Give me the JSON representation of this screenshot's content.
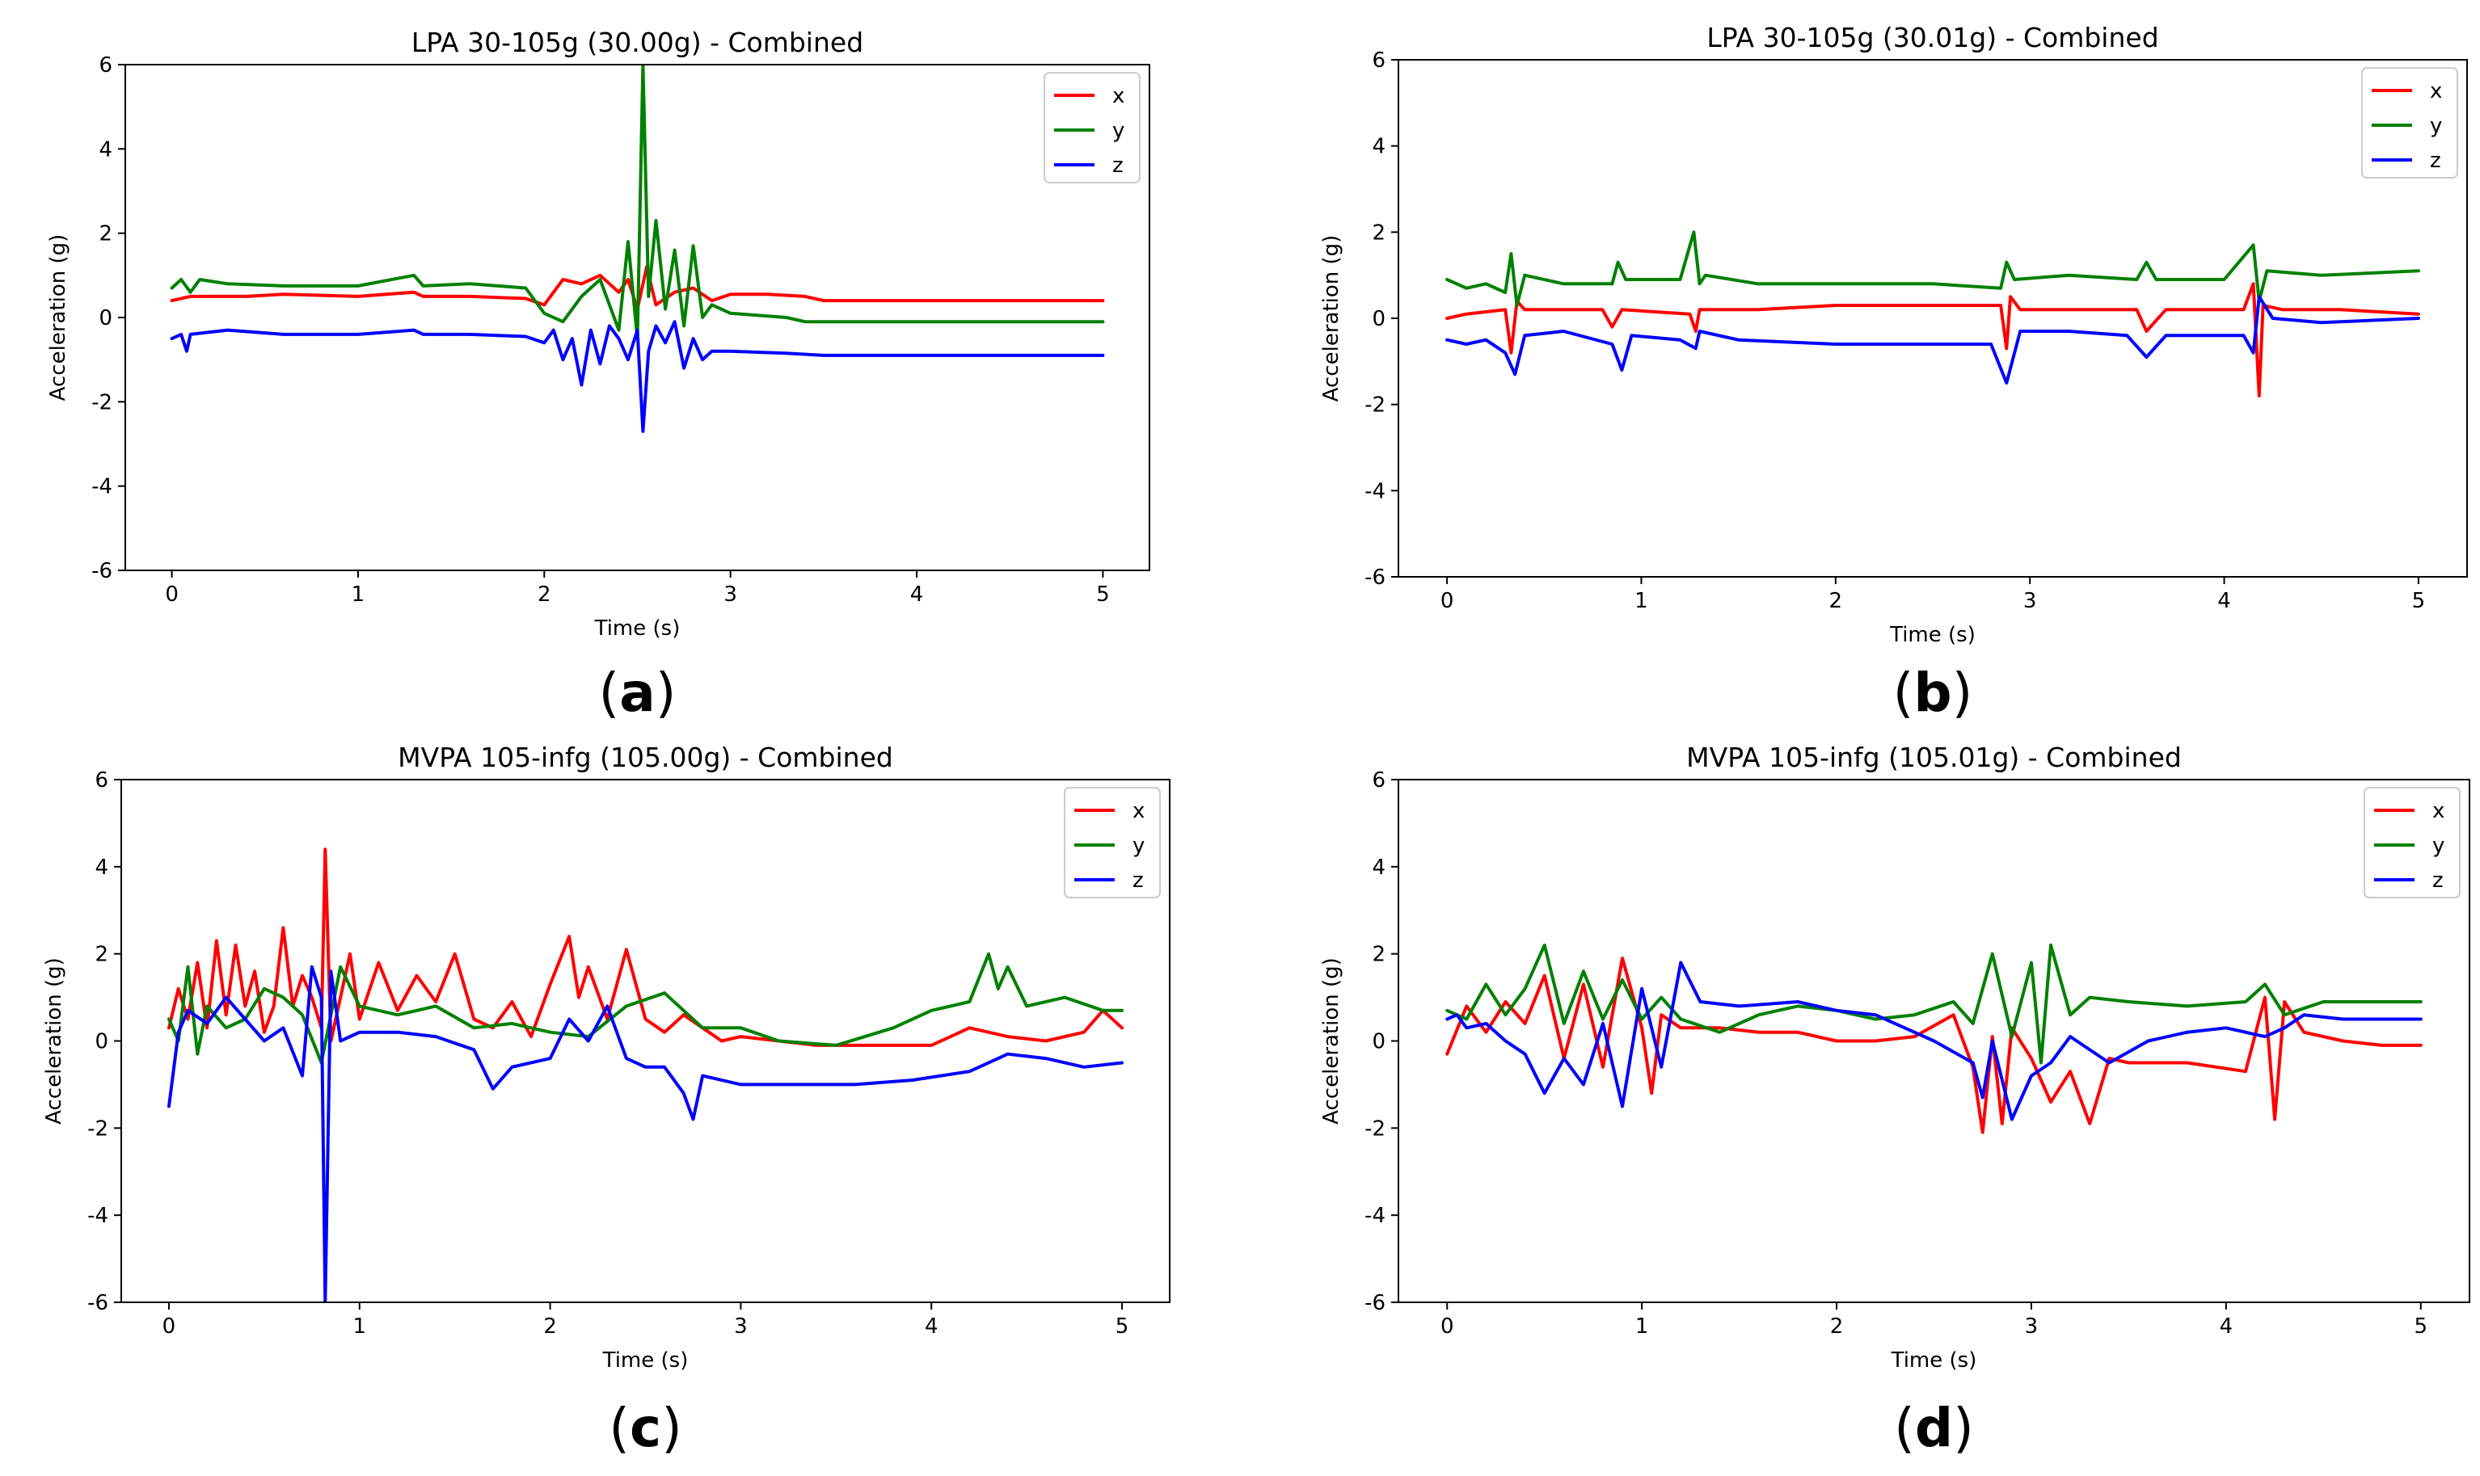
{
  "figure": {
    "axis_common": {
      "xlabel": "Time (s)",
      "ylabel": "Acceleration (g)",
      "ylim": [
        -6,
        6
      ],
      "yticks": [
        -6,
        -4,
        -2,
        0,
        2,
        4,
        6
      ],
      "xlim": [
        -0.25,
        5.25
      ],
      "xticks": [
        0,
        1,
        2,
        3,
        4,
        5
      ],
      "grid": false,
      "legend_position": "top-right",
      "series_colors": {
        "x": "#ff0000",
        "y": "#008000",
        "z": "#0000ff"
      }
    }
  },
  "chart_data": [
    {
      "type": "line",
      "panel": "a",
      "caption": "(a)",
      "caption_letter": "a",
      "title": "LPA 30-105g (30.00g) - Combined",
      "xlabel": "Time (s)",
      "ylabel": "Acceleration (g)",
      "xlim": [
        -0.25,
        5.25
      ],
      "ylim": [
        -6,
        6
      ],
      "xticks": [
        0,
        1,
        2,
        3,
        4,
        5
      ],
      "yticks": [
        -6,
        -4,
        -2,
        0,
        2,
        4,
        6
      ],
      "legend": [
        "x",
        "y",
        "z"
      ],
      "series": [
        {
          "name": "x",
          "color": "#ff0000",
          "x": [
            0,
            0.1,
            0.2,
            0.4,
            0.6,
            1.0,
            1.3,
            1.35,
            1.6,
            1.9,
            2.0,
            2.1,
            2.2,
            2.3,
            2.4,
            2.45,
            2.5,
            2.55,
            2.6,
            2.7,
            2.8,
            2.9,
            3.0,
            3.2,
            3.4,
            3.5,
            4.0,
            4.5,
            5.0
          ],
          "y": [
            0.4,
            0.5,
            0.5,
            0.5,
            0.55,
            0.5,
            0.6,
            0.5,
            0.5,
            0.45,
            0.3,
            0.9,
            0.8,
            1.0,
            0.6,
            0.9,
            0.2,
            1.2,
            0.3,
            0.6,
            0.7,
            0.4,
            0.55,
            0.55,
            0.5,
            0.4,
            0.4,
            0.4,
            0.4
          ]
        },
        {
          "name": "y",
          "color": "#008000",
          "x": [
            0,
            0.05,
            0.1,
            0.15,
            0.3,
            0.6,
            1.0,
            1.3,
            1.35,
            1.6,
            1.9,
            2.0,
            2.1,
            2.2,
            2.3,
            2.4,
            2.45,
            2.5,
            2.53,
            2.56,
            2.6,
            2.65,
            2.7,
            2.75,
            2.8,
            2.85,
            2.9,
            3.0,
            3.3,
            3.4,
            4.0,
            4.5,
            5.0
          ],
          "y": [
            0.7,
            0.9,
            0.6,
            0.9,
            0.8,
            0.75,
            0.75,
            1.0,
            0.75,
            0.8,
            0.7,
            0.1,
            -0.1,
            0.5,
            0.9,
            -0.3,
            1.8,
            -0.5,
            6.0,
            0.5,
            2.3,
            0.2,
            1.6,
            -0.2,
            1.7,
            0.0,
            0.3,
            0.1,
            0.0,
            -0.1,
            -0.1,
            -0.1,
            -0.1
          ]
        },
        {
          "name": "z",
          "color": "#0000ff",
          "x": [
            0,
            0.05,
            0.08,
            0.1,
            0.3,
            0.6,
            1.0,
            1.3,
            1.35,
            1.6,
            1.9,
            2.0,
            2.05,
            2.1,
            2.15,
            2.2,
            2.25,
            2.3,
            2.35,
            2.4,
            2.45,
            2.5,
            2.53,
            2.56,
            2.6,
            2.65,
            2.7,
            2.75,
            2.8,
            2.85,
            2.9,
            3.0,
            3.3,
            3.5,
            4.0,
            4.5,
            5.0
          ],
          "y": [
            -0.5,
            -0.4,
            -0.8,
            -0.4,
            -0.3,
            -0.4,
            -0.4,
            -0.3,
            -0.4,
            -0.4,
            -0.45,
            -0.6,
            -0.3,
            -1.0,
            -0.5,
            -1.6,
            -0.3,
            -1.1,
            -0.2,
            -0.5,
            -1.0,
            -0.3,
            -2.7,
            -0.8,
            -0.2,
            -0.6,
            -0.1,
            -1.2,
            -0.5,
            -1.0,
            -0.8,
            -0.8,
            -0.85,
            -0.9,
            -0.9,
            -0.9,
            -0.9
          ]
        }
      ]
    },
    {
      "type": "line",
      "panel": "b",
      "caption": "(b)",
      "caption_letter": "b",
      "title": "LPA 30-105g (30.01g) - Combined",
      "xlabel": "Time (s)",
      "ylabel": "Acceleration (g)",
      "xlim": [
        -0.25,
        5.25
      ],
      "ylim": [
        -6,
        6
      ],
      "xticks": [
        0,
        1,
        2,
        3,
        4,
        5
      ],
      "yticks": [
        -6,
        -4,
        -2,
        0,
        2,
        4,
        6
      ],
      "legend": [
        "x",
        "y",
        "z"
      ],
      "series": [
        {
          "name": "x",
          "color": "#ff0000",
          "x": [
            0,
            0.1,
            0.3,
            0.33,
            0.36,
            0.4,
            0.8,
            0.85,
            0.9,
            1.25,
            1.28,
            1.3,
            1.6,
            2.0,
            2.5,
            2.85,
            2.88,
            2.9,
            2.95,
            3.2,
            3.55,
            3.6,
            3.7,
            4.1,
            4.15,
            4.18,
            4.2,
            4.3,
            4.6,
            5.0
          ],
          "y": [
            0.0,
            0.1,
            0.2,
            -0.8,
            0.4,
            0.2,
            0.2,
            -0.2,
            0.2,
            0.1,
            -0.3,
            0.2,
            0.2,
            0.3,
            0.3,
            0.3,
            -0.7,
            0.5,
            0.2,
            0.2,
            0.2,
            -0.3,
            0.2,
            0.2,
            0.8,
            -1.8,
            0.3,
            0.2,
            0.2,
            0.1
          ]
        },
        {
          "name": "y",
          "color": "#008000",
          "x": [
            0,
            0.1,
            0.2,
            0.3,
            0.33,
            0.36,
            0.4,
            0.6,
            0.85,
            0.88,
            0.92,
            1.2,
            1.27,
            1.3,
            1.33,
            1.6,
            2.0,
            2.5,
            2.85,
            2.88,
            2.92,
            3.2,
            3.55,
            3.6,
            3.65,
            4.0,
            4.15,
            4.18,
            4.22,
            4.5,
            5.0
          ],
          "y": [
            0.9,
            0.7,
            0.8,
            0.6,
            1.5,
            0.3,
            1.0,
            0.8,
            0.8,
            1.3,
            0.9,
            0.9,
            2.0,
            0.8,
            1.0,
            0.8,
            0.8,
            0.8,
            0.7,
            1.3,
            0.9,
            1.0,
            0.9,
            1.3,
            0.9,
            0.9,
            1.7,
            0.4,
            1.1,
            1.0,
            1.1
          ]
        },
        {
          "name": "z",
          "color": "#0000ff",
          "x": [
            0,
            0.1,
            0.2,
            0.3,
            0.35,
            0.4,
            0.6,
            0.85,
            0.9,
            0.95,
            1.2,
            1.28,
            1.3,
            1.5,
            2.0,
            2.5,
            2.8,
            2.88,
            2.95,
            3.2,
            3.5,
            3.6,
            3.7,
            4.1,
            4.15,
            4.18,
            4.25,
            4.5,
            5.0
          ],
          "y": [
            -0.5,
            -0.6,
            -0.5,
            -0.8,
            -1.3,
            -0.4,
            -0.3,
            -0.6,
            -1.2,
            -0.4,
            -0.5,
            -0.7,
            -0.3,
            -0.5,
            -0.6,
            -0.6,
            -0.6,
            -1.5,
            -0.3,
            -0.3,
            -0.4,
            -0.9,
            -0.4,
            -0.4,
            -0.8,
            0.5,
            0.0,
            -0.1,
            0.0
          ]
        }
      ]
    },
    {
      "type": "line",
      "panel": "c",
      "caption": "(c)",
      "caption_letter": "c",
      "title": "MVPA 105-infg (105.00g) - Combined",
      "xlabel": "Time (s)",
      "ylabel": "Acceleration (g)",
      "xlim": [
        -0.25,
        5.25
      ],
      "ylim": [
        -6,
        6
      ],
      "xticks": [
        0,
        1,
        2,
        3,
        4,
        5
      ],
      "yticks": [
        -6,
        -4,
        -2,
        0,
        2,
        4,
        6
      ],
      "legend": [
        "x",
        "y",
        "z"
      ],
      "series": [
        {
          "name": "x",
          "color": "#ff0000",
          "x": [
            0,
            0.05,
            0.1,
            0.15,
            0.2,
            0.25,
            0.3,
            0.35,
            0.4,
            0.45,
            0.5,
            0.55,
            0.6,
            0.65,
            0.7,
            0.75,
            0.8,
            0.82,
            0.85,
            0.9,
            0.95,
            1.0,
            1.1,
            1.2,
            1.3,
            1.4,
            1.5,
            1.6,
            1.7,
            1.8,
            1.9,
            2.0,
            2.1,
            2.15,
            2.2,
            2.3,
            2.4,
            2.5,
            2.6,
            2.7,
            2.8,
            2.9,
            3.0,
            3.2,
            3.4,
            3.6,
            3.8,
            4.0,
            4.2,
            4.4,
            4.6,
            4.8,
            4.9,
            5.0
          ],
          "y": [
            0.3,
            1.2,
            0.5,
            1.8,
            0.3,
            2.3,
            0.6,
            2.2,
            0.8,
            1.6,
            0.2,
            0.8,
            2.6,
            0.8,
            1.5,
            1.0,
            0.3,
            4.4,
            0.0,
            1.0,
            2.0,
            0.5,
            1.8,
            0.7,
            1.5,
            0.9,
            2.0,
            0.5,
            0.3,
            0.9,
            0.1,
            1.3,
            2.4,
            1.0,
            1.7,
            0.5,
            2.1,
            0.5,
            0.2,
            0.6,
            0.3,
            0.0,
            0.1,
            0.0,
            -0.1,
            -0.1,
            -0.1,
            -0.1,
            0.3,
            0.1,
            0.0,
            0.2,
            0.7,
            0.3
          ]
        },
        {
          "name": "y",
          "color": "#008000",
          "x": [
            0,
            0.05,
            0.1,
            0.15,
            0.2,
            0.3,
            0.4,
            0.5,
            0.6,
            0.7,
            0.8,
            0.9,
            1.0,
            1.2,
            1.4,
            1.6,
            1.8,
            2.0,
            2.2,
            2.4,
            2.6,
            2.8,
            3.0,
            3.2,
            3.5,
            3.8,
            4.0,
            4.2,
            4.3,
            4.35,
            4.4,
            4.5,
            4.7,
            4.9,
            5.0
          ],
          "y": [
            0.5,
            0.0,
            1.7,
            -0.3,
            0.8,
            0.3,
            0.5,
            1.2,
            1.0,
            0.6,
            -0.5,
            1.7,
            0.8,
            0.6,
            0.8,
            0.3,
            0.4,
            0.2,
            0.1,
            0.8,
            1.1,
            0.3,
            0.3,
            0.0,
            -0.1,
            0.3,
            0.7,
            0.9,
            2.0,
            1.2,
            1.7,
            0.8,
            1.0,
            0.7,
            0.7
          ]
        },
        {
          "name": "z",
          "color": "#0000ff",
          "x": [
            0,
            0.05,
            0.1,
            0.2,
            0.3,
            0.4,
            0.5,
            0.6,
            0.7,
            0.75,
            0.8,
            0.82,
            0.85,
            0.9,
            1.0,
            1.2,
            1.4,
            1.6,
            1.7,
            1.8,
            2.0,
            2.1,
            2.2,
            2.3,
            2.4,
            2.5,
            2.6,
            2.7,
            2.75,
            2.8,
            3.0,
            3.3,
            3.6,
            3.9,
            4.2,
            4.4,
            4.6,
            4.8,
            5.0
          ],
          "y": [
            -1.5,
            0.2,
            0.7,
            0.4,
            1.0,
            0.5,
            0.0,
            0.3,
            -0.8,
            1.7,
            1.0,
            -6.0,
            1.6,
            0.0,
            0.2,
            0.2,
            0.1,
            -0.2,
            -1.1,
            -0.6,
            -0.4,
            0.5,
            0.0,
            0.8,
            -0.4,
            -0.6,
            -0.6,
            -1.2,
            -1.8,
            -0.8,
            -1.0,
            -1.0,
            -1.0,
            -0.9,
            -0.7,
            -0.3,
            -0.4,
            -0.6,
            -0.5
          ]
        }
      ]
    },
    {
      "type": "line",
      "panel": "d",
      "caption": "(d)",
      "caption_letter": "d",
      "title": "MVPA 105-infg (105.01g) - Combined",
      "xlabel": "Time (s)",
      "ylabel": "Acceleration (g)",
      "xlim": [
        -0.25,
        5.25
      ],
      "ylim": [
        -6,
        6
      ],
      "xticks": [
        0,
        1,
        2,
        3,
        4,
        5
      ],
      "yticks": [
        -6,
        -4,
        -2,
        0,
        2,
        4,
        6
      ],
      "legend": [
        "x",
        "y",
        "z"
      ],
      "series": [
        {
          "name": "x",
          "color": "#ff0000",
          "x": [
            0,
            0.1,
            0.2,
            0.3,
            0.4,
            0.5,
            0.6,
            0.7,
            0.8,
            0.9,
            1.0,
            1.05,
            1.1,
            1.2,
            1.4,
            1.6,
            1.8,
            2.0,
            2.2,
            2.4,
            2.6,
            2.7,
            2.75,
            2.8,
            2.85,
            2.9,
            3.0,
            3.1,
            3.2,
            3.3,
            3.4,
            3.5,
            3.8,
            4.1,
            4.2,
            4.25,
            4.3,
            4.4,
            4.6,
            4.8,
            5.0
          ],
          "y": [
            -0.3,
            0.8,
            0.2,
            0.9,
            0.4,
            1.5,
            -0.4,
            1.3,
            -0.6,
            1.9,
            0.3,
            -1.2,
            0.6,
            0.3,
            0.3,
            0.2,
            0.2,
            0.0,
            0.0,
            0.1,
            0.6,
            -0.6,
            -2.1,
            0.1,
            -1.9,
            0.3,
            -0.4,
            -1.4,
            -0.7,
            -1.9,
            -0.4,
            -0.5,
            -0.5,
            -0.7,
            1.0,
            -1.8,
            0.9,
            0.2,
            0.0,
            -0.1,
            -0.1
          ]
        },
        {
          "name": "y",
          "color": "#008000",
          "x": [
            0,
            0.1,
            0.2,
            0.3,
            0.4,
            0.5,
            0.6,
            0.7,
            0.8,
            0.9,
            1.0,
            1.1,
            1.2,
            1.4,
            1.6,
            1.8,
            2.0,
            2.2,
            2.4,
            2.6,
            2.7,
            2.8,
            2.9,
            3.0,
            3.05,
            3.1,
            3.2,
            3.3,
            3.5,
            3.8,
            4.1,
            4.2,
            4.3,
            4.5,
            4.8,
            5.0
          ],
          "y": [
            0.7,
            0.5,
            1.3,
            0.6,
            1.2,
            2.2,
            0.4,
            1.6,
            0.5,
            1.4,
            0.5,
            1.0,
            0.5,
            0.2,
            0.6,
            0.8,
            0.7,
            0.5,
            0.6,
            0.9,
            0.4,
            2.0,
            0.1,
            1.8,
            -0.5,
            2.2,
            0.6,
            1.0,
            0.9,
            0.8,
            0.9,
            1.3,
            0.6,
            0.9,
            0.9,
            0.9
          ]
        },
        {
          "name": "z",
          "color": "#0000ff",
          "x": [
            0,
            0.05,
            0.1,
            0.2,
            0.3,
            0.4,
            0.5,
            0.6,
            0.7,
            0.8,
            0.9,
            1.0,
            1.1,
            1.15,
            1.2,
            1.3,
            1.5,
            1.8,
            2.0,
            2.2,
            2.5,
            2.7,
            2.75,
            2.8,
            2.9,
            3.0,
            3.1,
            3.2,
            3.4,
            3.6,
            3.8,
            4.0,
            4.2,
            4.3,
            4.4,
            4.6,
            4.8,
            5.0
          ],
          "y": [
            0.5,
            0.6,
            0.3,
            0.4,
            0.0,
            -0.3,
            -1.2,
            -0.4,
            -1.0,
            0.4,
            -1.5,
            1.2,
            -0.6,
            0.6,
            1.8,
            0.9,
            0.8,
            0.9,
            0.7,
            0.6,
            0.0,
            -0.5,
            -1.3,
            0.0,
            -1.8,
            -0.8,
            -0.5,
            0.1,
            -0.5,
            0.0,
            0.2,
            0.3,
            0.1,
            0.3,
            0.6,
            0.5,
            0.5,
            0.5
          ]
        }
      ]
    }
  ]
}
